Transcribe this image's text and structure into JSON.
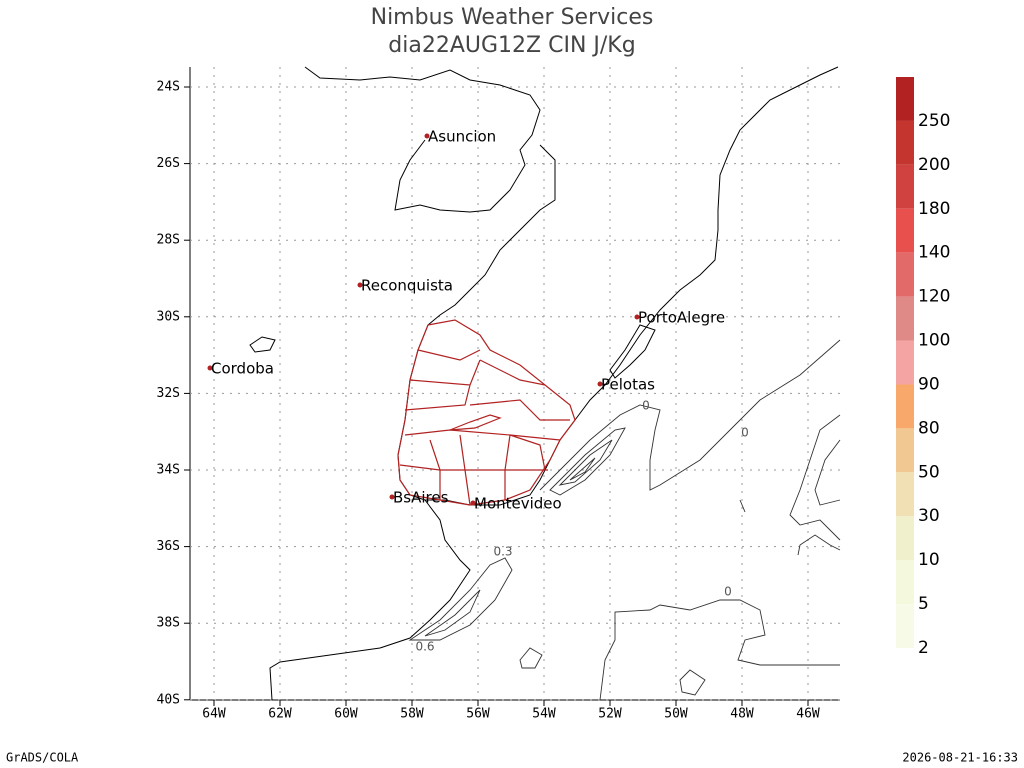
{
  "header": {
    "title": "Nimbus Weather Services",
    "subtitle": "dia22AUG12Z CIN J/Kg"
  },
  "map": {
    "lat_labels": [
      "24S",
      "26S",
      "28S",
      "30S",
      "32S",
      "34S",
      "36S",
      "38S",
      "40S"
    ],
    "lon_labels": [
      "64W",
      "62W",
      "60W",
      "58W",
      "56W",
      "54W",
      "52W",
      "50W",
      "48W",
      "46W"
    ],
    "cities": [
      {
        "name": "Asuncion"
      },
      {
        "name": "Reconquista"
      },
      {
        "name": "Cordoba"
      },
      {
        "name": "PortoAlegre"
      },
      {
        "name": "Pelotas"
      },
      {
        "name": "BsAires"
      },
      {
        "name": "Montevideo"
      }
    ],
    "contour_labels": [
      "0",
      "0",
      "0.3",
      "0.6",
      "0"
    ]
  },
  "colorbar": {
    "labels": [
      250,
      200,
      180,
      140,
      120,
      100,
      90,
      80,
      50,
      30,
      10,
      5,
      2
    ]
  },
  "footer": {
    "left": "GrADS/COLA",
    "right": "2026-08-21-16:33"
  }
}
